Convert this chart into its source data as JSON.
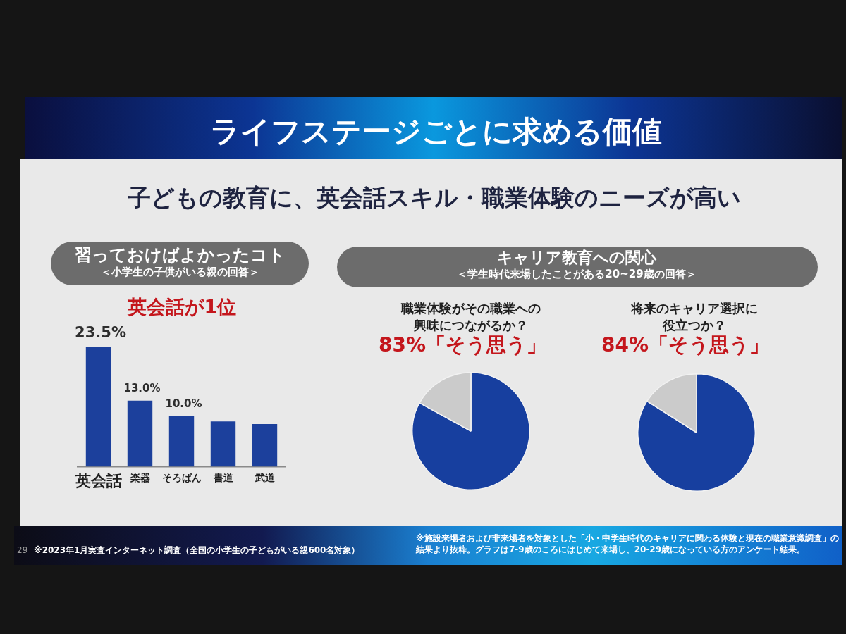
{
  "chart_data": [
    {
      "type": "bar",
      "title": "習っておけばよかったコト",
      "subtitle": "＜小学生の子供がいる親の回答＞",
      "categories": [
        "英会話",
        "楽器",
        "そろばん",
        "書道",
        "武道"
      ],
      "values": [
        23.5,
        13.0,
        10.0,
        8.9,
        8.4
      ],
      "color": "#1c409c",
      "value_labels": [
        "23.5%",
        "13.0%",
        "10.0%",
        null,
        null
      ],
      "tick_labels": "x",
      "annotations": [
        "ライフステージごとに求める価値",
        "子どもの教育に、英会話スキル・職業体験のニーズが高い",
        "英会話が1位",
        "※2023年1月実査インターネット調査（全国の小学生の子どもがいる親600名対象）",
        "29"
      ]
    },
    {
      "type": "pie",
      "title": "職業体験がその職業への興味につながるか？",
      "categories": [
        null,
        null
      ],
      "values": [
        83,
        17
      ],
      "colors": [
        "#173f9f",
        "#cbcbcb"
      ],
      "annotations": [
        "キャリア教育への関心",
        "＜学生時代来場したことがある20~29歳の回答＞",
        "83%「そう思う」",
        "※施設来場者および非来場者を対象とした「小・中学生時代のキャリアに関わる体験と現在の職業意識調査」の結果より抜粋。グラフは7-9歳のころにはじめて来場し、20-29歳になっている方のアンケート結果。"
      ]
    },
    {
      "type": "pie",
      "title": "将来のキャリア選択に役立つか？",
      "categories": [
        null,
        null
      ],
      "values": [
        84,
        16
      ],
      "colors": [
        "#173f9f",
        "#cbcbcb"
      ],
      "annotations": [
        "84%「そう思う」"
      ]
    }
  ]
}
